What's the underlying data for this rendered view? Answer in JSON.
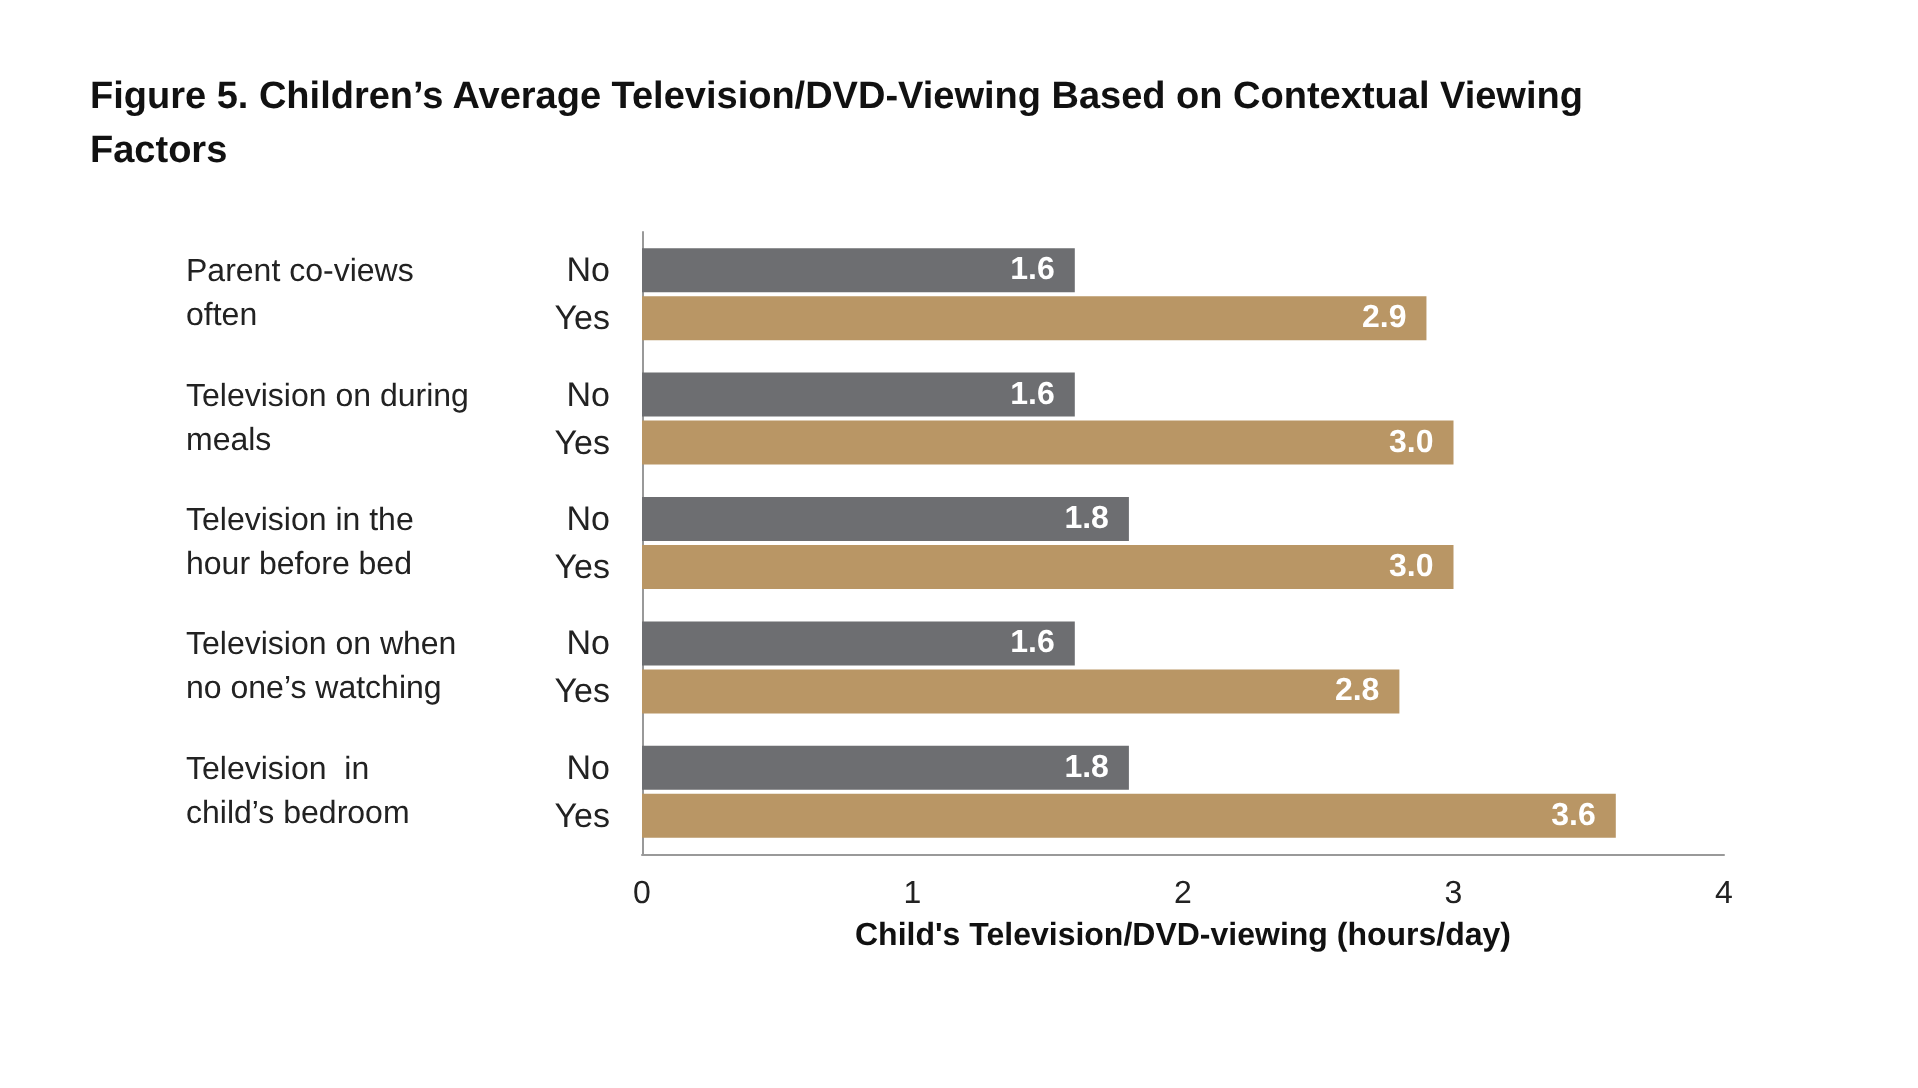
{
  "chart_data": {
    "type": "bar",
    "orientation": "horizontal",
    "title": "Figure 5. Children’s Average Television/DVD-Viewing Based on Contextual Viewing Factors",
    "xlabel": "Child's Television/DVD-viewing (hours/day)",
    "categories": [
      "Parent co-views often",
      "Television on during meals",
      "Television in the hour before bed",
      "Television on when no one’s watching",
      "Television  in child’s bedroom"
    ],
    "series": [
      {
        "name": "No",
        "color": "#6d6e71",
        "values": [
          1.6,
          1.6,
          1.8,
          1.6,
          1.8
        ],
        "value_labels": [
          "1.6",
          "1.6",
          "1.8",
          "1.6",
          "1.8"
        ]
      },
      {
        "name": "Yes",
        "color": "#b99665",
        "values": [
          2.9,
          3.0,
          3.0,
          2.8,
          3.6
        ],
        "value_labels": [
          "2.9",
          "3.0",
          "3.0",
          "2.8",
          "3.6"
        ]
      }
    ],
    "xlim": [
      0,
      4
    ],
    "xticks": [
      0,
      1,
      2,
      3,
      4
    ],
    "grid": false,
    "legend": false
  }
}
